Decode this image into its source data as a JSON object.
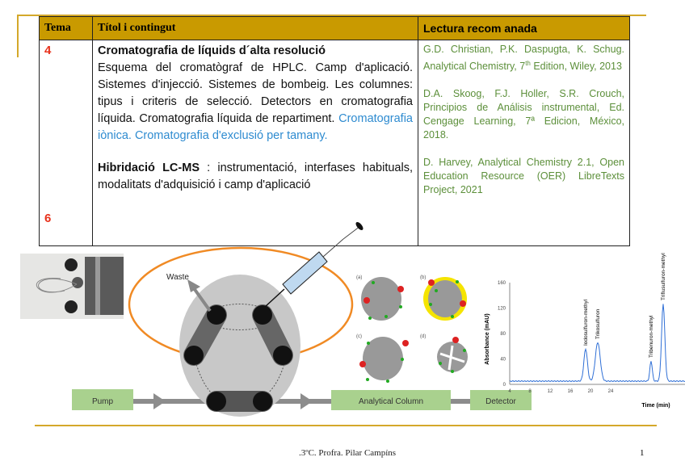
{
  "table": {
    "headers": {
      "tema": "Tema",
      "titol": "Títol i contingut",
      "lectura": "Lectura recom anada"
    },
    "rows": [
      {
        "num": "4",
        "title": "Cromatografia de líquids d´alta resolució",
        "text": "Esquema del cromatògraf de HPLC. Camp d'aplicació. Sistemes d'injecció. Sistemes de bombeig. Les columnes: tipus i criteris de selecció. Detectors en cromatografia líquida. Cromatografia líquida de repartiment.",
        "text_blue": "Cromatografia iònica. Cromatografia d'exclusió per tamany."
      },
      {
        "num": "6",
        "title": "Hibridació LC-MS",
        "text": " : instrumentació, interfases habituals, modalitats d'adquisició i camp d'aplicació"
      }
    ],
    "references": [
      {
        "text": "G.D. Christian, P.K. Daspugta, K. Schug. Analytical Chemistry, 7",
        "sup": "th",
        "tail": " Edition, Wiley, 2013"
      },
      {
        "text": "D.A. Skoog, F.J. Holler, S.R. Crouch, Principios de Análisis instrumental, Ed. Cengage Learning, 7ª Edicion, México, 2018."
      },
      {
        "text": "D. Harvey, Analytical Chemistry 2.1, Open Education Resource (OER) LibreTexts Project, 2021"
      }
    ]
  },
  "diagram": {
    "waste": "Waste",
    "pump": "Pump",
    "column": "Analytical Column",
    "detector": "Detector",
    "particle_labels": [
      "(a)",
      "(b)",
      "(c)",
      "(d)"
    ],
    "colors": {
      "box": "#A9D18E",
      "loop": "#F08A24",
      "valve": "#C8C8C8",
      "yellow": "#F5E400"
    }
  },
  "chromatogram": {
    "ylabel": "Absorbance (mAU)",
    "xlabel": "Time (min)",
    "xticks": [
      "4",
      "8",
      "12",
      "16",
      "20",
      "24"
    ],
    "yticks": [
      "0",
      "40",
      "80",
      "120",
      "160"
    ],
    "peaks": [
      "Iodosulfuron-methyl",
      "Trikosulfuron",
      "Tribenuron-methyl",
      "Triflusulfuron-methyl"
    ],
    "color": "#2F6FD6"
  },
  "footer": {
    "text": ".3ºC. Profra. Pilar Campíns",
    "page": "1"
  }
}
